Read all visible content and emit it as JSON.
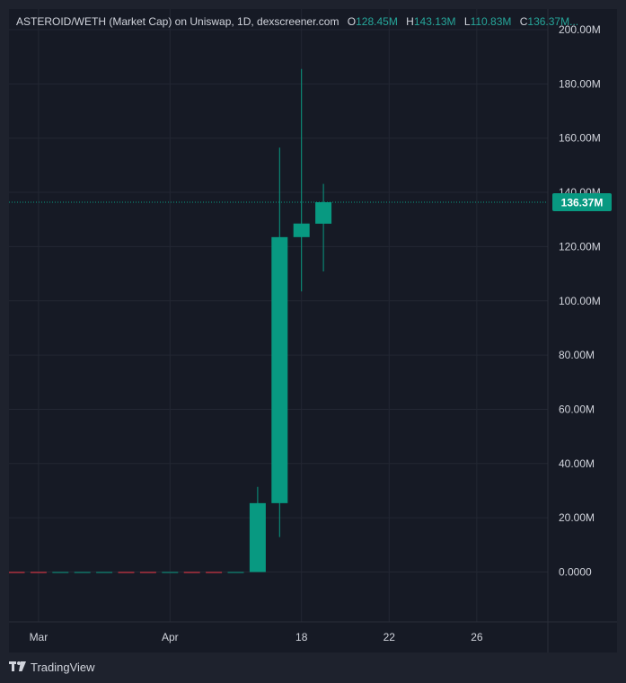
{
  "legend": {
    "title": "ASTEROID/WETH (Market Cap) on Uniswap, 1D, dexscreener.com",
    "o_label": "O",
    "o_value": "128.45M",
    "h_label": "H",
    "h_value": "143.13M",
    "l_label": "L",
    "l_value": "110.83M",
    "c_label": "C",
    "c_value": "136.37M..."
  },
  "footer": {
    "brand": "TradingView",
    "logo_icon": "tradingview-logo-icon"
  },
  "colors": {
    "background": "#161a25",
    "outer": "#1e222d",
    "grid": "#232733",
    "text": "#d1d4dc",
    "up": "#089981",
    "down": "#f23645",
    "price_tag": "#089981"
  },
  "chart_data": {
    "type": "candlestick",
    "y_ticks": [
      "200.00M",
      "180.00M",
      "160.00M",
      "140.00M",
      "120.00M",
      "100.00M",
      "80.00M",
      "60.00M",
      "40.00M",
      "20.00M",
      "0.0000"
    ],
    "y_tick_values": [
      200,
      180,
      160,
      140,
      120,
      100,
      80,
      60,
      40,
      20,
      0
    ],
    "y_unit": "M",
    "ylim": [
      -18.5,
      200
    ],
    "x_ticks": [
      "Mar",
      "Apr",
      "18",
      "22",
      "26"
    ],
    "x_tick_index": [
      1,
      7,
      13,
      17,
      21
    ],
    "last_price_label": "136.37M",
    "last_price": 136.37,
    "candles": [
      {
        "o": 0,
        "h": 0,
        "l": 0,
        "c": 0,
        "dir": "down"
      },
      {
        "o": 0,
        "h": 0,
        "l": 0,
        "c": 0,
        "dir": "down"
      },
      {
        "o": 0,
        "h": 0,
        "l": 0,
        "c": 0,
        "dir": "up"
      },
      {
        "o": 0,
        "h": 0,
        "l": 0,
        "c": 0,
        "dir": "up"
      },
      {
        "o": 0,
        "h": 0,
        "l": 0,
        "c": 0,
        "dir": "up"
      },
      {
        "o": 0,
        "h": 0,
        "l": 0,
        "c": 0,
        "dir": "down"
      },
      {
        "o": 0,
        "h": 0,
        "l": 0,
        "c": 0,
        "dir": "down"
      },
      {
        "o": 0,
        "h": 0,
        "l": 0,
        "c": 0,
        "dir": "up"
      },
      {
        "o": 0,
        "h": 0,
        "l": 0,
        "c": 0,
        "dir": "down"
      },
      {
        "o": 0,
        "h": 0,
        "l": 0,
        "c": 0,
        "dir": "down"
      },
      {
        "o": 0,
        "h": 0,
        "l": 0,
        "c": 0,
        "dir": "up"
      },
      {
        "o": 0,
        "h": 31.4,
        "l": 0,
        "c": 25.4,
        "dir": "up"
      },
      {
        "o": 25.4,
        "h": 156.5,
        "l": 12.9,
        "c": 123.5,
        "dir": "up"
      },
      {
        "o": 123.5,
        "h": 185.5,
        "l": 103.5,
        "c": 128.5,
        "dir": "up"
      },
      {
        "o": 128.45,
        "h": 143.13,
        "l": 110.83,
        "c": 136.37,
        "dir": "up"
      }
    ]
  }
}
